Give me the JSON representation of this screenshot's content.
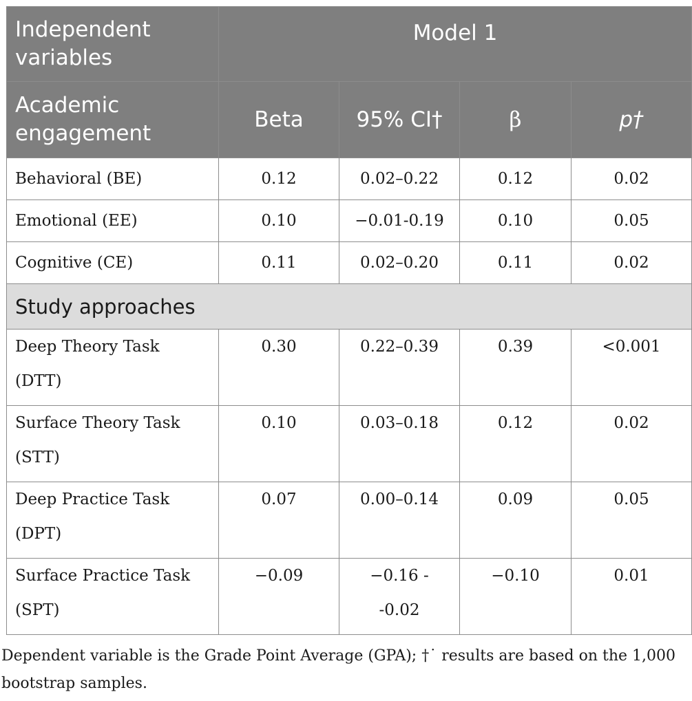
{
  "header": {
    "independent_variables": "Independent variables",
    "model": "Model 1",
    "academic_engagement": "Academic engagement",
    "col_beta": "Beta",
    "col_ci": "95% CI†",
    "col_std_beta": "β",
    "col_p": "p†"
  },
  "section_study_approaches": "Study approaches",
  "rows_engagement": [
    {
      "label": "Behavioral (BE)",
      "beta": "0.12",
      "ci": "0.02–0.22",
      "std_beta": "0.12",
      "p": "0.02"
    },
    {
      "label": "Emotional (EE)",
      "beta": "0.10",
      "ci": "−0.01-0.19",
      "std_beta": "0.10",
      "p": "0.05"
    },
    {
      "label": "Cognitive (CE)",
      "beta": "0.11",
      "ci": "0.02–0.20",
      "std_beta": "0.11",
      "p": "0.02"
    }
  ],
  "rows_approaches": [
    {
      "label1": "Deep Theory Task",
      "label2": "(DTT)",
      "beta": "0.30",
      "ci1": "0.22–0.39",
      "ci2": "",
      "std_beta": "0.39",
      "p": "<0.001"
    },
    {
      "label1": "Surface Theory Task",
      "label2": "(STT)",
      "beta": "0.10",
      "ci1": "0.03–0.18",
      "ci2": "",
      "std_beta": "0.12",
      "p": "0.02"
    },
    {
      "label1": "Deep Practice Task",
      "label2": "(DPT)",
      "beta": "0.07",
      "ci1": "0.00–0.14",
      "ci2": "",
      "std_beta": "0.09",
      "p": "0.05"
    },
    {
      "label1": "Surface Practice Task",
      "label2": "(SPT)",
      "beta": "−0.09",
      "ci1": "−0.16 -",
      "ci2": "-0.02",
      "std_beta": "−0.10",
      "p": "0.01"
    }
  ],
  "footnote": "Dependent variable is the Grade Point Average (GPA); †˙ results are based on the 1,000 bootstrap samples."
}
